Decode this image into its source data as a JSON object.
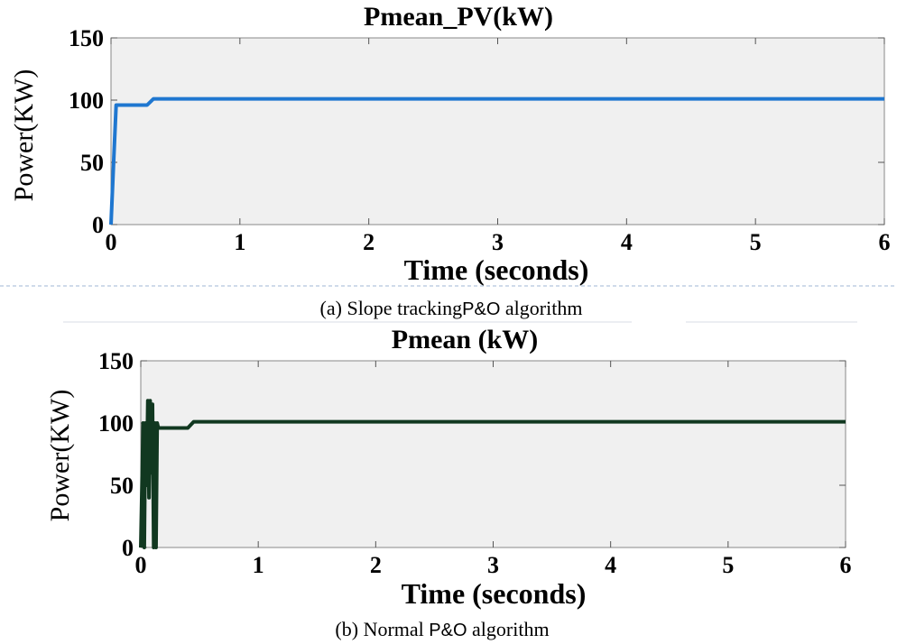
{
  "chart_data": [
    {
      "type": "line",
      "title": "Pmean_PV(kW)",
      "xlabel": "Time (seconds)",
      "ylabel": "Power(KW)",
      "xlim": [
        0,
        6
      ],
      "ylim": [
        0,
        150
      ],
      "xticks": [
        "0",
        "1",
        "2",
        "3",
        "4",
        "5",
        "6"
      ],
      "yticks": [
        "0",
        "50",
        "100",
        "150"
      ],
      "grid": false,
      "line_color": "#1f77d0",
      "background": "#f0f0f0",
      "series": [
        {
          "x": [
            0,
            0.02,
            0.04,
            0.06,
            0.28,
            0.33,
            6
          ],
          "y": [
            0,
            50,
            96,
            96,
            96,
            101,
            101
          ]
        }
      ],
      "caption_prefix": "(a) Slope tracking",
      "caption_suffix": "P&O",
      "caption_end": " algorithm"
    },
    {
      "type": "line",
      "title": "Pmean (kW)",
      "xlabel": "Time (seconds)",
      "ylabel": "Power(KW)",
      "xlim": [
        0,
        6
      ],
      "ylim": [
        0,
        150
      ],
      "xticks": [
        "0",
        "1",
        "2",
        "3",
        "4",
        "5",
        "6"
      ],
      "yticks": [
        "0",
        "50",
        "100",
        "150"
      ],
      "grid": false,
      "line_color": "#113820",
      "background": "#f0f0f0",
      "series": [
        {
          "x": [
            0,
            0.02,
            0.03,
            0.04,
            0.05,
            0.06,
            0.07,
            0.08,
            0.09,
            0.1,
            0.11,
            0.12,
            0.13,
            0.14,
            0.15,
            0.4,
            0.45,
            6
          ],
          "y": [
            0,
            100,
            0,
            100,
            50,
            118,
            40,
            118,
            60,
            115,
            0,
            100,
            0,
            100,
            96,
            96,
            101,
            101
          ]
        }
      ],
      "caption_prefix": "(b) Normal ",
      "caption_suffix": "P&O",
      "caption_end": " algorithm"
    }
  ]
}
